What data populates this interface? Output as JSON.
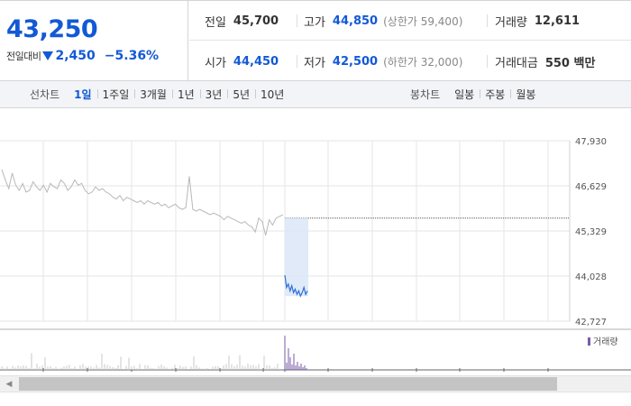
{
  "quote": {
    "price": "43,250",
    "change_label": "전일대비",
    "change_value": "2,450",
    "change_pct": "−5.36%",
    "stats": {
      "prev_close": {
        "label": "전일",
        "value": "45,700"
      },
      "high": {
        "label": "고가",
        "value": "44,850",
        "sub": "(상한가 59,400)"
      },
      "volume": {
        "label": "거래량",
        "value": "12,611"
      },
      "open": {
        "label": "시가",
        "value": "44,450"
      },
      "low": {
        "label": "저가",
        "value": "42,500",
        "sub": "(하한가 32,000)"
      },
      "amount": {
        "label": "거래대금",
        "value": "550 백만"
      }
    },
    "colors": {
      "down": "#1259d6"
    }
  },
  "periods": {
    "line_title": "선차트",
    "line_tabs": [
      "1일",
      "1주일",
      "3개월",
      "1년",
      "3년",
      "5년",
      "10년"
    ],
    "line_active": "1일",
    "candle_title": "봉차트",
    "candle_tabs": [
      "일봉",
      "주봉",
      "월봉"
    ]
  },
  "chart_data": {
    "type": "line",
    "y_ticks": [
      "47,930",
      "46,629",
      "45,329",
      "44,028",
      "42,727"
    ],
    "ylim": [
      42727,
      47930
    ],
    "prev_close_line": 45700,
    "volume_label": "거래량",
    "grid": true,
    "series": [
      {
        "values": [
          47100,
          46800,
          46550,
          47000,
          46650,
          46500,
          46700,
          46450,
          46500,
          46750,
          46600,
          46500,
          46650,
          46450,
          46700,
          46600,
          46550,
          46800,
          46700,
          46500,
          46600,
          46800,
          46650,
          46700,
          46500,
          46400,
          46450,
          46600,
          46500,
          46550,
          46450,
          46400,
          46300,
          46250,
          46350,
          46200,
          46300,
          46250,
          46200,
          46150,
          46200,
          46100,
          46200,
          46150,
          46100,
          46150,
          46050,
          46100,
          46000,
          46050,
          46100,
          46000,
          45950,
          46000,
          46900,
          45950,
          45900,
          45950,
          45900,
          45850,
          45800,
          45850,
          45800,
          45750,
          45650,
          45750,
          45700,
          45650,
          45600,
          45550,
          45600,
          45500,
          45450,
          45300,
          45700,
          45600,
          45200,
          45650,
          45500,
          45700,
          45750,
          45800
        ]
      },
      {
        "values": [
          44050,
          43700,
          43800,
          43600,
          43750,
          43550,
          43650,
          43500,
          43600,
          43450,
          43550,
          43700,
          43500,
          43600
        ]
      }
    ]
  }
}
